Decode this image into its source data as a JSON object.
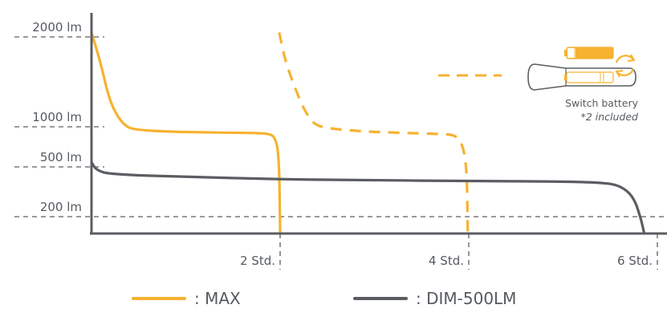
{
  "chart_data": {
    "type": "line",
    "y_scale": "categorical-levels",
    "y_ticks": [
      {
        "value": 2000,
        "label": "2000 lm"
      },
      {
        "value": 1000,
        "label": "1000 lm"
      },
      {
        "value": 500,
        "label": "500 lm"
      },
      {
        "value": 200,
        "label": "200 lm"
      }
    ],
    "x_ticks": [
      {
        "value": 2,
        "label": "2 Std."
      },
      {
        "value": 4,
        "label": "4 Std."
      },
      {
        "value": 6,
        "label": "6 Std."
      }
    ],
    "xlim": [
      0,
      6.15
    ],
    "reference_line": {
      "value": 200
    },
    "series": [
      {
        "name": ": MAX",
        "color": "#f6b230",
        "style": "solid",
        "points": [
          [
            0,
            2050
          ],
          [
            0.1,
            1700
          ],
          [
            0.2,
            1250
          ],
          [
            0.35,
            1000
          ],
          [
            0.5,
            960
          ],
          [
            0.8,
            940
          ],
          [
            1.2,
            930
          ],
          [
            1.6,
            925
          ],
          [
            1.85,
            920
          ],
          [
            1.95,
            880
          ],
          [
            1.99,
            600
          ],
          [
            2.0,
            0
          ]
        ]
      },
      {
        "name": ": MAX",
        "color": "#f6b230",
        "style": "dashed",
        "points": [
          [
            1.99,
            2050
          ],
          [
            2.05,
            1750
          ],
          [
            2.15,
            1450
          ],
          [
            2.25,
            1200
          ],
          [
            2.35,
            1030
          ],
          [
            2.5,
            980
          ],
          [
            2.9,
            940
          ],
          [
            3.3,
            925
          ],
          [
            3.7,
            910
          ],
          [
            3.85,
            900
          ],
          [
            3.93,
            800
          ],
          [
            3.98,
            500
          ],
          [
            3.99,
            0
          ]
        ]
      },
      {
        "name": ": DIM-500LM",
        "color": "#5a5d61",
        "style": "solid",
        "points": [
          [
            0,
            560
          ],
          [
            0.05,
            480
          ],
          [
            0.2,
            455
          ],
          [
            1,
            440
          ],
          [
            2,
            425
          ],
          [
            3,
            420
          ],
          [
            4,
            415
          ],
          [
            5,
            412
          ],
          [
            5.4,
            405
          ],
          [
            5.6,
            390
          ],
          [
            5.75,
            320
          ],
          [
            5.83,
            160
          ],
          [
            5.86,
            0
          ]
        ]
      }
    ],
    "annotation": {
      "title": "Switch battery",
      "subtitle": "*2 included",
      "battery_a_color": "#f6b230",
      "battery_b_color": "#f6b230",
      "swap_arrow_color": "#f6b230"
    },
    "legend": [
      {
        "label": ": MAX",
        "color": "#f6b230"
      },
      {
        "label": ": DIM-500LM",
        "color": "#5a5d61"
      }
    ]
  }
}
